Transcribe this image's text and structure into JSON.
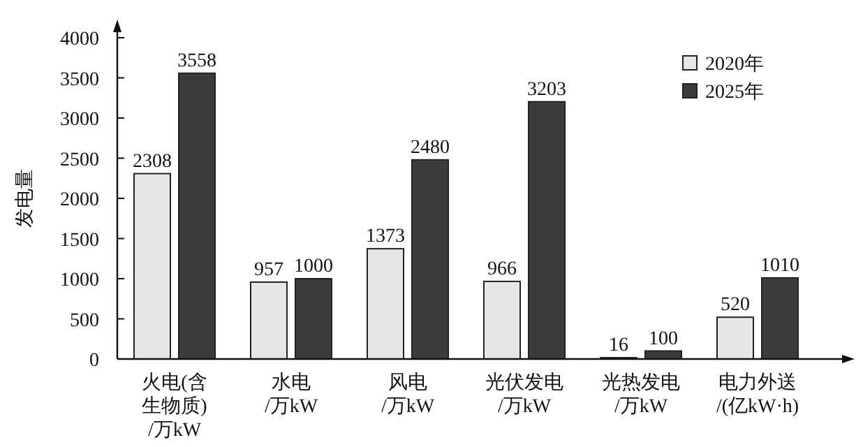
{
  "chart_data": {
    "type": "bar",
    "ylabel": "发电量",
    "categories": [
      "火电(含生物质)/万kW",
      "水电/万kW",
      "风电/万kW",
      "光伏发电/万kW",
      "光热发电/万kW",
      "电力外送/(亿kW·h)"
    ],
    "series": [
      {
        "name": "2020年",
        "color": "#e6e6e6",
        "values": [
          2308,
          957,
          1373,
          966,
          16,
          520
        ]
      },
      {
        "name": "2025年",
        "color": "#3c3c3c",
        "values": [
          3558,
          1000,
          2480,
          3203,
          100,
          1010
        ]
      }
    ],
    "ylim": [
      0,
      4000
    ],
    "yticks": [
      0,
      500,
      1000,
      1500,
      2000,
      2500,
      3000,
      3500,
      4000
    ],
    "data_labels": true,
    "legend": "top right",
    "grid": false
  }
}
